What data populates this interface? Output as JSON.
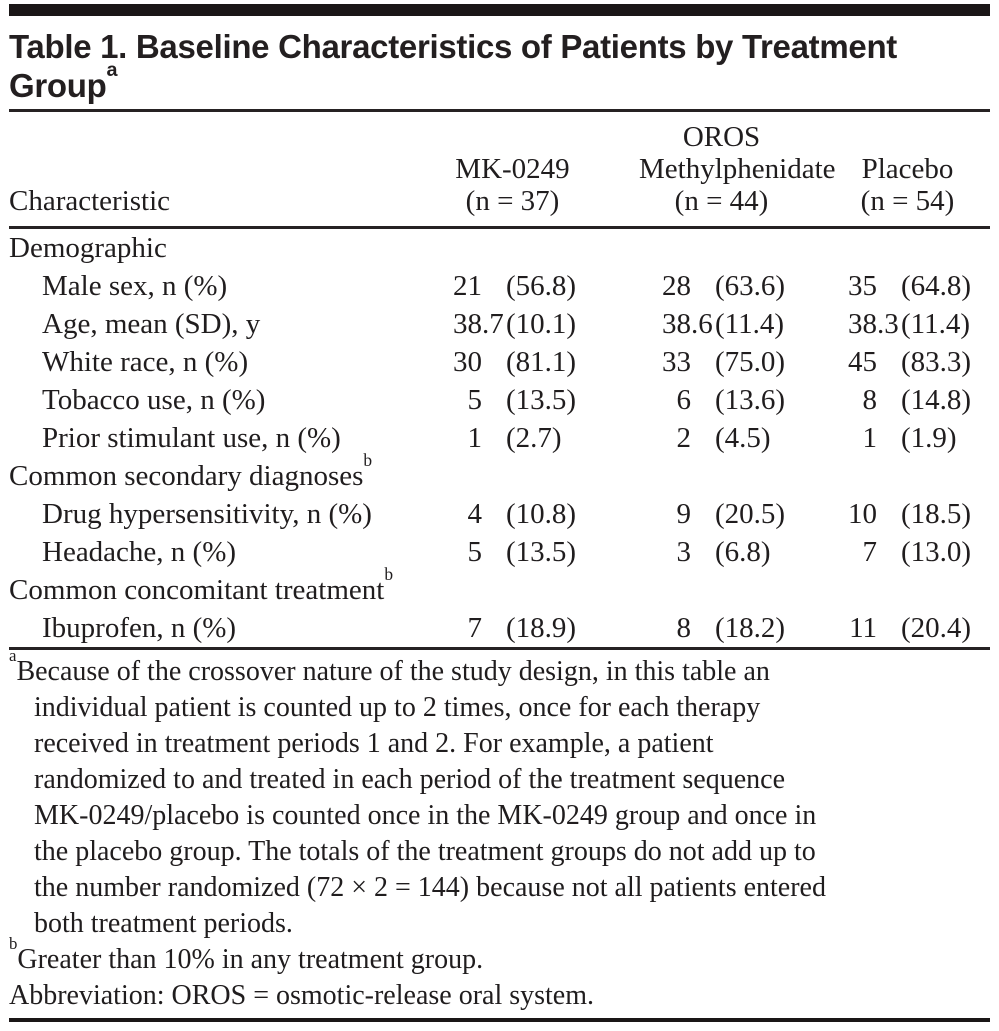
{
  "title": {
    "lines": [
      "Table 1. Baseline Characteristics of Patients by Treatment",
      "Group"
    ],
    "superscript": "a"
  },
  "table": {
    "row_header": "Characteristic",
    "columns": [
      {
        "line1": "",
        "line2": "MK-0249",
        "line3": "(n = 37)"
      },
      {
        "line1": "OROS",
        "line2": "Methylphenidate",
        "line3": "(n = 44)"
      },
      {
        "line1": "",
        "line2": "Placebo",
        "line3": "(n = 54)"
      }
    ],
    "rows": [
      {
        "label": "Demographic",
        "sup": "",
        "indent": false,
        "section": true
      },
      {
        "label": "Male sex, n (%)",
        "sup": "",
        "indent": true,
        "values": [
          [
            "21",
            "(56.8)"
          ],
          [
            "28",
            "(63.6)"
          ],
          [
            "35",
            "(64.8)"
          ]
        ]
      },
      {
        "label": "Age, mean (SD), y",
        "sup": "",
        "indent": true,
        "values": [
          [
            "38.7",
            "(10.1)"
          ],
          [
            "38.6",
            "(11.4)"
          ],
          [
            "38.3",
            "(11.4)"
          ]
        ]
      },
      {
        "label": "White race, n (%)",
        "sup": "",
        "indent": true,
        "values": [
          [
            "30",
            "(81.1)"
          ],
          [
            "33",
            "(75.0)"
          ],
          [
            "45",
            "(83.3)"
          ]
        ]
      },
      {
        "label": "Tobacco use, n (%)",
        "sup": "",
        "indent": true,
        "values": [
          [
            "5",
            "(13.5)"
          ],
          [
            "6",
            "(13.6)"
          ],
          [
            "8",
            "(14.8)"
          ]
        ]
      },
      {
        "label": "Prior stimulant use, n (%)",
        "sup": "",
        "indent": true,
        "values": [
          [
            "1",
            "(2.7)"
          ],
          [
            "2",
            "(4.5)"
          ],
          [
            "1",
            "(1.9)"
          ]
        ]
      },
      {
        "label": "Common secondary diagnoses",
        "sup": "b",
        "indent": false,
        "section": true
      },
      {
        "label": "Drug hypersensitivity, n (%)",
        "sup": "",
        "indent": true,
        "values": [
          [
            "4",
            "(10.8)"
          ],
          [
            "9",
            "(20.5)"
          ],
          [
            "10",
            "(18.5)"
          ]
        ]
      },
      {
        "label": "Headache, n (%)",
        "sup": "",
        "indent": true,
        "values": [
          [
            "5",
            "(13.5)"
          ],
          [
            "3",
            "(6.8)"
          ],
          [
            "7",
            "(13.0)"
          ]
        ]
      },
      {
        "label": "Common concomitant treatment",
        "sup": "b",
        "indent": false,
        "section": true
      },
      {
        "label": "Ibuprofen, n (%)",
        "sup": "",
        "indent": true,
        "values": [
          [
            "7",
            "(18.9)"
          ],
          [
            "8",
            "(18.2)"
          ],
          [
            "11",
            "(20.4)"
          ]
        ]
      }
    ]
  },
  "footnotes": [
    {
      "marker": "a",
      "lines": [
        "Because of the crossover nature of the study design, in this table an",
        "individual patient is counted up to 2 times, once for each therapy",
        "received in treatment periods 1 and 2. For example, a patient",
        "randomized to and treated in each period of the treatment sequence",
        "MK-0249/placebo is counted once in the MK-0249 group and once in",
        "the placebo group. The totals of the treatment groups do not add up to",
        "the number randomized (72 × 2 = 144) because not all patients entered",
        "both treatment periods."
      ]
    },
    {
      "marker": "b",
      "lines": [
        "Greater than 10% in any treatment group."
      ]
    },
    {
      "marker": "",
      "lines": [
        "Abbreviation: OROS = osmotic-release oral system."
      ]
    }
  ],
  "colors": {
    "background": "#ffffff",
    "text": "#201d1e",
    "title_text": "#231f20",
    "bar": "#1a1617",
    "rule": "#262223"
  },
  "chart_data": {
    "type": "table",
    "title": "Table 1. Baseline Characteristics of Patients by Treatment Group",
    "groups": [
      "MK-0249 (n = 37)",
      "OROS Methylphenidate (n = 44)",
      "Placebo (n = 54)"
    ],
    "columns": [
      "Characteristic",
      "MK-0249 n",
      "MK-0249 (%)",
      "OROS Methylphenidate n",
      "OROS Methylphenidate (%)",
      "Placebo n",
      "Placebo (%)"
    ],
    "rows": [
      [
        "Male sex, n (%)",
        21,
        56.8,
        28,
        63.6,
        35,
        64.8
      ],
      [
        "Age, mean (SD), y",
        38.7,
        10.1,
        38.6,
        11.4,
        38.3,
        11.4
      ],
      [
        "White race, n (%)",
        30,
        81.1,
        33,
        75.0,
        45,
        83.3
      ],
      [
        "Tobacco use, n (%)",
        5,
        13.5,
        6,
        13.6,
        8,
        14.8
      ],
      [
        "Prior stimulant use, n (%)",
        1,
        2.7,
        2,
        4.5,
        1,
        1.9
      ],
      [
        "Drug hypersensitivity, n (%)",
        4,
        10.8,
        9,
        20.5,
        10,
        18.5
      ],
      [
        "Headache, n (%)",
        5,
        13.5,
        3,
        6.8,
        7,
        13.0
      ],
      [
        "Ibuprofen, n (%)",
        7,
        18.9,
        8,
        18.2,
        11,
        20.4
      ]
    ],
    "sections": [
      "Demographic",
      "Common secondary diagnoses",
      "Common concomitant treatment"
    ]
  }
}
